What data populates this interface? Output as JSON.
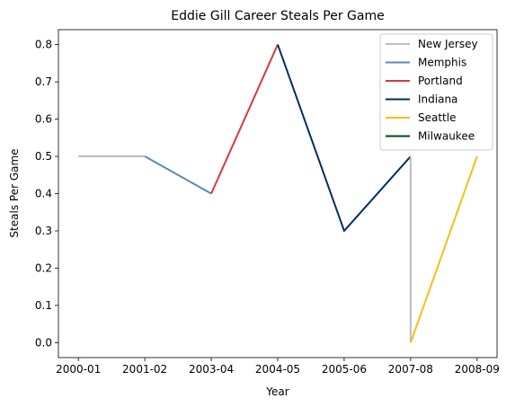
{
  "chart_data": {
    "type": "line",
    "title": "Eddie Gill Career Steals Per Game",
    "xlabel": "Year",
    "ylabel": "Steals Per Game",
    "categories": [
      "2000-01",
      "2001-02",
      "2003-04",
      "2004-05",
      "2005-06",
      "2007-08",
      "2008-09"
    ],
    "ylim": [
      -0.04,
      0.84
    ],
    "yticks": [
      "0.0",
      "0.1",
      "0.2",
      "0.3",
      "0.4",
      "0.5",
      "0.6",
      "0.7",
      "0.8"
    ],
    "grid": false,
    "legend_position": "top-right",
    "series": [
      {
        "name": "New Jersey",
        "color": "#bdbdbd",
        "points": [
          [
            "2000-01",
            0.5
          ],
          [
            "2001-02",
            0.5
          ]
        ]
      },
      {
        "name": "Memphis",
        "color": "#5d89b4",
        "points": [
          [
            "2001-02",
            0.5
          ],
          [
            "2003-04",
            0.4
          ]
        ]
      },
      {
        "name": "Portland",
        "color": "#d9393d",
        "points": [
          [
            "2003-04",
            0.4
          ],
          [
            "2004-05",
            0.8
          ]
        ]
      },
      {
        "name": "Indiana",
        "color": "#002d62",
        "points": [
          [
            "2004-05",
            0.8
          ],
          [
            "2005-06",
            0.3
          ],
          [
            "2007-08",
            0.5
          ]
        ]
      },
      {
        "name": "New Jersey",
        "color": "#bdbdbd",
        "legend": false,
        "points": [
          [
            "2007-08",
            0.5
          ],
          [
            "2007-08",
            0.0
          ]
        ]
      },
      {
        "name": "Seattle",
        "color": "#f5c016",
        "points": [
          [
            "2007-08",
            0.0
          ],
          [
            "2008-09",
            0.5
          ]
        ]
      },
      {
        "name": "Milwaukee",
        "color": "#00471b",
        "points": []
      }
    ]
  }
}
